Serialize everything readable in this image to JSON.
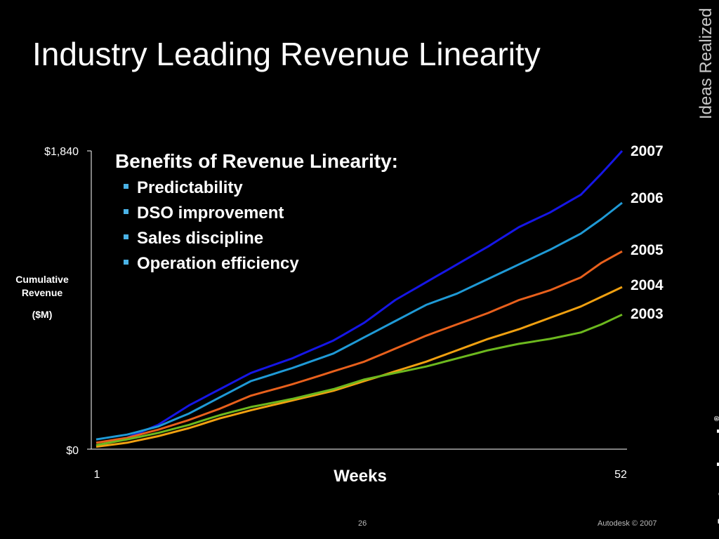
{
  "slide": {
    "title": "Industry Leading Revenue Linearity",
    "brand_tagline": "Ideas Realized",
    "brand_logo": "Autodesk",
    "brand_logo_mark": "®",
    "page_number": "26",
    "copyright": "Autodesk © 2007"
  },
  "benefits": {
    "heading": "Benefits of Revenue Linearity:",
    "items": [
      "Predictability",
      "DSO improvement",
      "Sales discipline",
      "Operation efficiency"
    ],
    "bullet_color": "#4ab2e6"
  },
  "chart_data": {
    "type": "line",
    "title": "",
    "xlabel": "Weeks",
    "ylabel_lines": [
      "Cumulative",
      "Revenue",
      "($M)"
    ],
    "xlim": [
      1,
      52
    ],
    "ylim": [
      0,
      1840
    ],
    "x_tick_labels": [
      "1",
      "52"
    ],
    "y_tick_labels": [
      "$0",
      "$1,840"
    ],
    "grid": false,
    "legend": "end-of-line labels on right",
    "series": [
      {
        "name": "2007",
        "color": "#1616e6",
        "anchors": [
          [
            1,
            20
          ],
          [
            4,
            70
          ],
          [
            7,
            150
          ],
          [
            10,
            270
          ],
          [
            13,
            370
          ],
          [
            16,
            470
          ],
          [
            20,
            560
          ],
          [
            24,
            670
          ],
          [
            27,
            780
          ],
          [
            30,
            920
          ],
          [
            33,
            1030
          ],
          [
            36,
            1140
          ],
          [
            39,
            1250
          ],
          [
            42,
            1370
          ],
          [
            45,
            1460
          ],
          [
            48,
            1570
          ],
          [
            50,
            1700
          ],
          [
            52,
            1840
          ]
        ]
      },
      {
        "name": "2006",
        "color": "#1f9ad6",
        "anchors": [
          [
            1,
            60
          ],
          [
            4,
            90
          ],
          [
            7,
            140
          ],
          [
            10,
            220
          ],
          [
            13,
            320
          ],
          [
            16,
            420
          ],
          [
            20,
            500
          ],
          [
            24,
            590
          ],
          [
            27,
            690
          ],
          [
            30,
            790
          ],
          [
            33,
            890
          ],
          [
            36,
            960
          ],
          [
            39,
            1050
          ],
          [
            42,
            1140
          ],
          [
            45,
            1230
          ],
          [
            48,
            1330
          ],
          [
            50,
            1420
          ],
          [
            52,
            1520
          ]
        ]
      },
      {
        "name": "2005",
        "color": "#e8601c",
        "anchors": [
          [
            1,
            40
          ],
          [
            4,
            70
          ],
          [
            7,
            120
          ],
          [
            10,
            180
          ],
          [
            13,
            250
          ],
          [
            16,
            330
          ],
          [
            20,
            400
          ],
          [
            24,
            480
          ],
          [
            27,
            540
          ],
          [
            30,
            620
          ],
          [
            33,
            700
          ],
          [
            36,
            770
          ],
          [
            39,
            840
          ],
          [
            42,
            920
          ],
          [
            45,
            980
          ],
          [
            48,
            1060
          ],
          [
            50,
            1150
          ],
          [
            52,
            1220
          ]
        ]
      },
      {
        "name": "2004",
        "color": "#f0a010",
        "anchors": [
          [
            1,
            15
          ],
          [
            4,
            40
          ],
          [
            7,
            80
          ],
          [
            10,
            130
          ],
          [
            13,
            190
          ],
          [
            16,
            240
          ],
          [
            20,
            300
          ],
          [
            24,
            360
          ],
          [
            27,
            420
          ],
          [
            30,
            480
          ],
          [
            33,
            540
          ],
          [
            36,
            610
          ],
          [
            39,
            680
          ],
          [
            42,
            740
          ],
          [
            45,
            810
          ],
          [
            48,
            880
          ],
          [
            50,
            940
          ],
          [
            52,
            1000
          ]
        ]
      },
      {
        "name": "2003",
        "color": "#6cb81e",
        "anchors": [
          [
            1,
            25
          ],
          [
            4,
            60
          ],
          [
            7,
            100
          ],
          [
            10,
            150
          ],
          [
            13,
            210
          ],
          [
            16,
            260
          ],
          [
            20,
            310
          ],
          [
            24,
            370
          ],
          [
            27,
            430
          ],
          [
            30,
            470
          ],
          [
            33,
            510
          ],
          [
            36,
            560
          ],
          [
            39,
            610
          ],
          [
            42,
            650
          ],
          [
            45,
            680
          ],
          [
            48,
            720
          ],
          [
            50,
            770
          ],
          [
            52,
            830
          ]
        ]
      }
    ]
  }
}
